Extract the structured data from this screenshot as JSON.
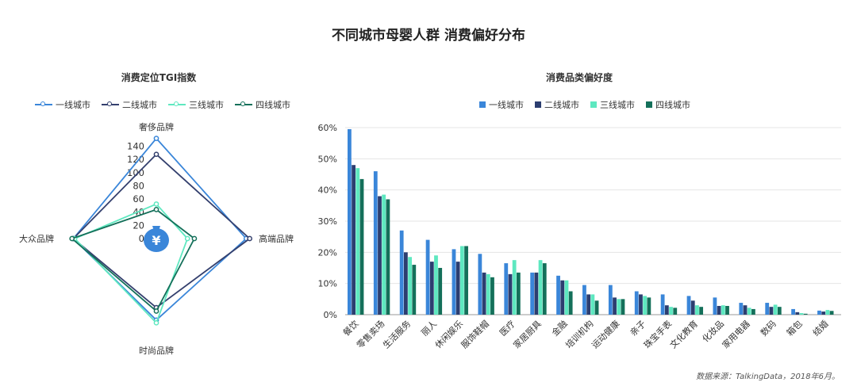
{
  "title": "不同城市母婴人群  消费偏好分布",
  "source": "数据来源：TalkingData，2018年6月。",
  "chart_data": [
    {
      "type": "radar",
      "title": "消费定位TGI指数",
      "axes": [
        "奢侈品牌",
        "高端品牌",
        "时尚品牌",
        "大众品牌"
      ],
      "ticks": [
        "0",
        "20",
        "40",
        "60",
        "80",
        "100",
        "120",
        "140"
      ],
      "max": 140,
      "center_icon": "money-bag-icon",
      "series": [
        {
          "name": "一线城市",
          "color": "#3a86d9",
          "values": [
            145,
            130,
            118,
            120
          ]
        },
        {
          "name": "二线城市",
          "color": "#34406e",
          "values": [
            122,
            135,
            100,
            120
          ]
        },
        {
          "name": "三线城市",
          "color": "#5ee8c0",
          "values": [
            50,
            45,
            122,
            118
          ]
        },
        {
          "name": "四线城市",
          "color": "#14705a",
          "values": [
            42,
            55,
            105,
            122
          ]
        }
      ]
    },
    {
      "type": "bar",
      "title": "消费品类偏好度",
      "categories": [
        "餐饮",
        "零售卖场",
        "生活服务",
        "丽人",
        "休闲娱乐",
        "服饰鞋帽",
        "医疗",
        "家居厨具",
        "金融",
        "培训机构",
        "运动健康",
        "亲子",
        "珠宝手表",
        "文化教育",
        "化妆品",
        "家用电器",
        "数码",
        "箱包",
        "结婚"
      ],
      "ylim": [
        0,
        60
      ],
      "yticks": [
        "0%",
        "10%",
        "20%",
        "30%",
        "40%",
        "50%",
        "60%"
      ],
      "series": [
        {
          "name": "一线城市",
          "color": "#3a86d9",
          "values": [
            59.5,
            46,
            27,
            24,
            21,
            19.5,
            16.5,
            13.5,
            12.5,
            9.5,
            9.5,
            7.5,
            6.5,
            6,
            5.5,
            3.8,
            3.8,
            1.8,
            1.3
          ]
        },
        {
          "name": "二线城市",
          "color": "#2c3e70",
          "values": [
            48,
            38,
            20,
            17,
            17,
            13.5,
            13,
            13.5,
            11,
            6.5,
            5.5,
            6.5,
            3,
            4.5,
            2.8,
            3,
            2.5,
            0.8,
            1
          ]
        },
        {
          "name": "三线城市",
          "color": "#5ee8c0",
          "values": [
            47,
            38.5,
            18.5,
            19,
            22,
            13,
            17.5,
            17.5,
            11,
            6.5,
            5,
            6,
            2.5,
            3,
            3,
            2.2,
            3.2,
            0.5,
            1.5
          ]
        },
        {
          "name": "四线城市",
          "color": "#14705a",
          "values": [
            43.5,
            37,
            16,
            15,
            22,
            12,
            13.5,
            16.5,
            7.5,
            4.5,
            5,
            5.5,
            2.2,
            2.5,
            2.8,
            1.8,
            2.5,
            0.3,
            1.2
          ]
        }
      ]
    }
  ]
}
